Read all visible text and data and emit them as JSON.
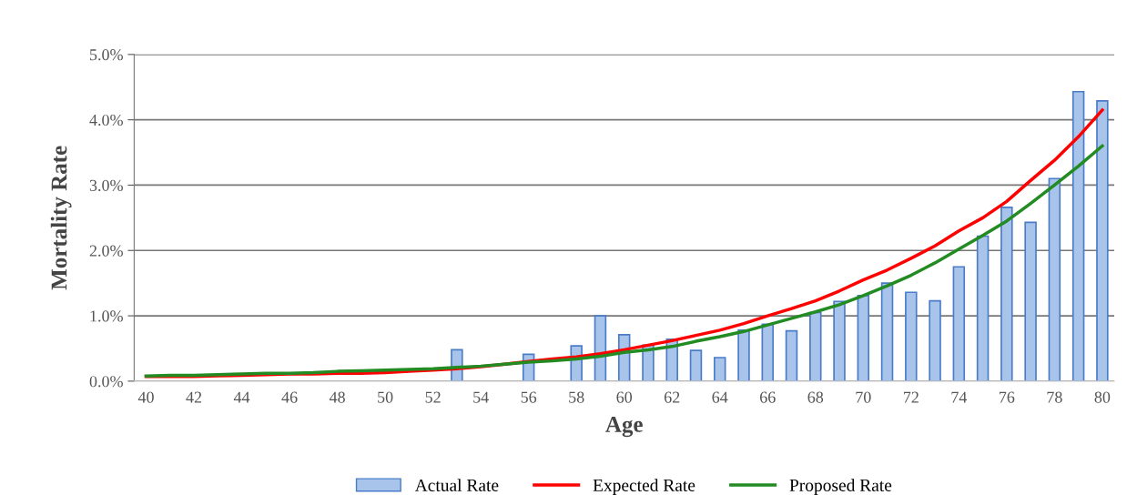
{
  "chart_data": {
    "type": "bar",
    "xlabel": "Age",
    "ylabel": "Mortality Rate",
    "categories": [
      "40",
      null,
      "42",
      null,
      "44",
      null,
      "46",
      null,
      "48",
      null,
      "50",
      null,
      "52",
      null,
      "54",
      null,
      "56",
      null,
      "58",
      null,
      "60",
      null,
      "62",
      null,
      "64",
      null,
      "66",
      null,
      "68",
      null,
      "70",
      null,
      "72",
      null,
      "74",
      null,
      "76",
      null,
      "78",
      null,
      "80"
    ],
    "series": [
      {
        "name": "Actual Rate",
        "color": "#a9c4eb",
        "values": [
          null,
          null,
          null,
          null,
          null,
          null,
          null,
          null,
          null,
          null,
          null,
          null,
          null,
          0.48,
          null,
          null,
          0.41,
          null,
          0.54,
          1.0,
          0.71,
          0.55,
          0.64,
          0.47,
          0.36,
          0.78,
          0.87,
          0.77,
          1.05,
          1.22,
          1.31,
          1.5,
          1.36,
          1.23,
          1.75,
          2.22,
          2.66,
          2.43,
          3.1,
          4.43,
          4.29
        ]
      },
      {
        "name": "Expected Rate",
        "type": "line",
        "color": "#ff0000",
        "values": [
          0.07,
          0.07,
          0.07,
          0.08,
          0.09,
          0.1,
          0.11,
          0.11,
          0.12,
          0.12,
          0.13,
          0.15,
          0.17,
          0.19,
          0.22,
          0.26,
          0.3,
          0.34,
          0.37,
          0.42,
          0.48,
          0.55,
          0.62,
          0.7,
          0.78,
          0.88,
          1.0,
          1.11,
          1.23,
          1.38,
          1.55,
          1.7,
          1.88,
          2.07,
          2.3,
          2.5,
          2.75,
          3.07,
          3.38,
          3.74,
          4.15
        ]
      },
      {
        "name": "Proposed Rate",
        "type": "line",
        "color": "#228b22",
        "values": [
          0.08,
          0.09,
          0.09,
          0.1,
          0.11,
          0.12,
          0.12,
          0.13,
          0.15,
          0.16,
          0.17,
          0.18,
          0.19,
          0.21,
          0.23,
          0.26,
          0.29,
          0.31,
          0.34,
          0.38,
          0.44,
          0.48,
          0.53,
          0.61,
          0.68,
          0.76,
          0.86,
          0.96,
          1.06,
          1.17,
          1.31,
          1.46,
          1.62,
          1.81,
          2.02,
          2.23,
          2.45,
          2.72,
          3.0,
          3.29,
          3.6
        ]
      }
    ],
    "ylim": [
      0,
      5
    ],
    "yticks": [
      {
        "value": 0,
        "label": "0.0%"
      },
      {
        "value": 1,
        "label": "1.0%"
      },
      {
        "value": 2,
        "label": "2.0%"
      },
      {
        "value": 3,
        "label": "3.0%"
      },
      {
        "value": 4,
        "label": "4.0%"
      },
      {
        "value": 5,
        "label": "5.0%"
      }
    ],
    "grid": "y",
    "legend": "bottom",
    "marker": "none",
    "line_style": "solid"
  }
}
